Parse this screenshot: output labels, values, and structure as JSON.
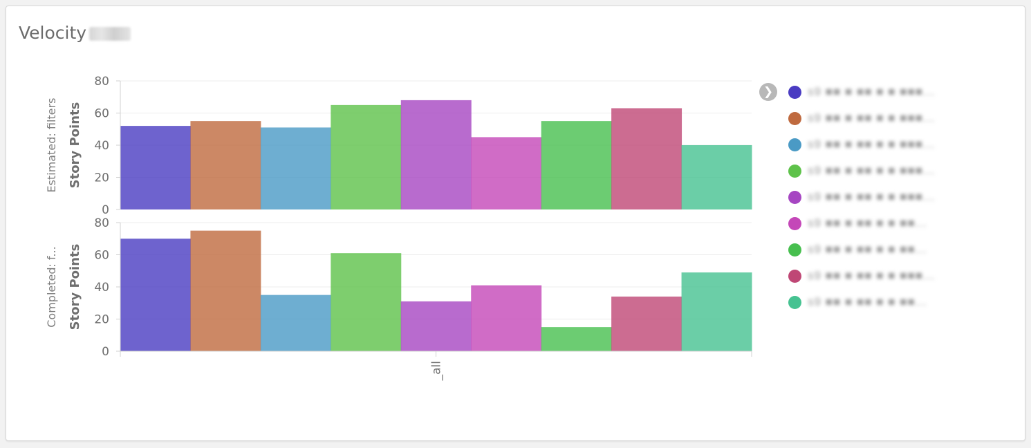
{
  "panel": {
    "title": "Velocity"
  },
  "chart_data": [
    {
      "type": "bar",
      "subtitle": "Estimated: filters",
      "ylabel": "Story Points",
      "ylim": [
        0,
        80
      ],
      "yticks": [
        0,
        20,
        40,
        60,
        80
      ],
      "categories": [
        "_all"
      ],
      "series": [
        {
          "values": [
            52
          ]
        },
        {
          "values": [
            55
          ]
        },
        {
          "values": [
            51
          ]
        },
        {
          "values": [
            65
          ]
        },
        {
          "values": [
            68
          ]
        },
        {
          "values": [
            45
          ]
        },
        {
          "values": [
            55
          ]
        },
        {
          "values": [
            63
          ]
        },
        {
          "values": [
            40
          ]
        }
      ],
      "grid": true
    },
    {
      "type": "bar",
      "subtitle": "Completed: f...",
      "ylabel": "Story Points",
      "ylim": [
        0,
        80
      ],
      "yticks": [
        0,
        20,
        40,
        60,
        80
      ],
      "xlabel_tick": "_all",
      "categories": [
        "_all"
      ],
      "series": [
        {
          "values": [
            70
          ]
        },
        {
          "values": [
            75
          ]
        },
        {
          "values": [
            35
          ]
        },
        {
          "values": [
            61
          ]
        },
        {
          "values": [
            31
          ]
        },
        {
          "values": [
            41
          ]
        },
        {
          "values": [
            15
          ]
        },
        {
          "values": [
            34
          ]
        },
        {
          "values": [
            49
          ]
        }
      ],
      "grid": true
    }
  ],
  "series_colors": [
    "#4a3cc2",
    "#bf6a3f",
    "#4a9ac5",
    "#5ec24a",
    "#a646c2",
    "#c447b8",
    "#47bf4f",
    "#bf4775",
    "#46c291"
  ],
  "legend": {
    "placement": "right",
    "toggle_icon": "chevron-right-icon",
    "items": [
      {
        "label": "s9 ■■ ■ ■■ ■ ■ ■■■...",
        "color": "#4a3cc2"
      },
      {
        "label": "s9 ■■ ■ ■■ ■ ■ ■■■...",
        "color": "#bf6a3f"
      },
      {
        "label": "s9 ■■ ■ ■■ ■ ■ ■■■...",
        "color": "#4a9ac5"
      },
      {
        "label": "s9 ■■ ■ ■■ ■ ■ ■■■...",
        "color": "#5ec24a"
      },
      {
        "label": "s9 ■■ ■ ■■ ■ ■ ■■■...",
        "color": "#a646c2"
      },
      {
        "label": "s9 ■■ ■ ■■ ■ ■ ■■...",
        "color": "#c447b8"
      },
      {
        "label": "s9 ■■ ■ ■■ ■ ■ ■■...",
        "color": "#47bf4f"
      },
      {
        "label": "s9 ■■ ■ ■■ ■ ■ ■■■...",
        "color": "#bf4775"
      },
      {
        "label": "s9 ■■ ■ ■■ ■ ■ ■■...",
        "color": "#46c291"
      }
    ]
  }
}
